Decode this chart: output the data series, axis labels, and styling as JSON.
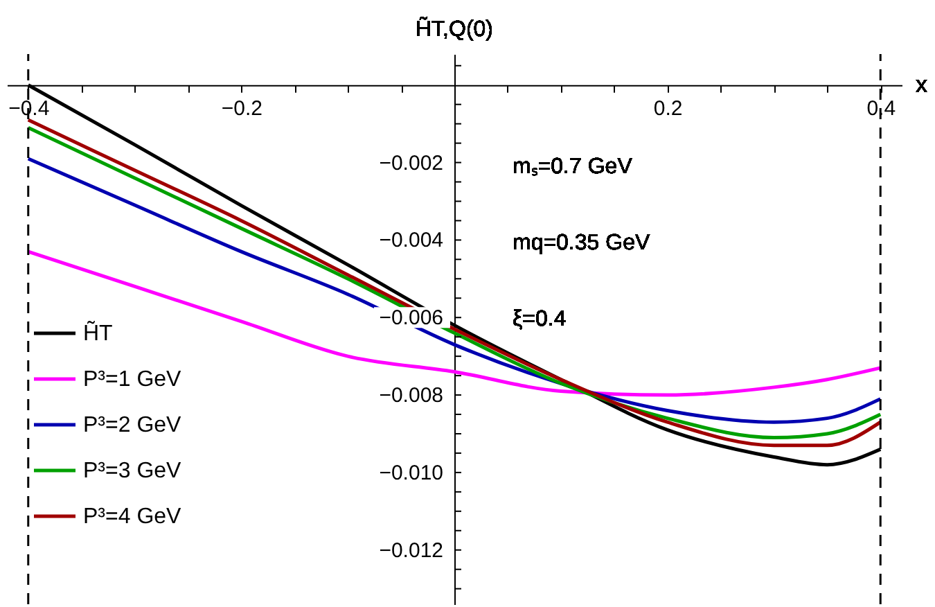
{
  "chart_data": {
    "type": "line",
    "xlabel": "x",
    "ylabel": "H̃T,Q(0)",
    "x": [
      -0.4,
      -0.3,
      -0.2,
      -0.1,
      0,
      0.1,
      0.2,
      0.3,
      0.35,
      0.4
    ],
    "series": [
      {
        "name": "H̃T",
        "color": "#000000",
        "values": [
          0.0,
          -0.00154,
          -0.00311,
          -0.00464,
          -0.0062,
          -0.0076,
          -0.0089,
          -0.0096,
          -0.0098,
          -0.0094
        ]
      },
      {
        "name": "P³=1 GeV",
        "color": "#ff00ff",
        "values": [
          -0.0043,
          -0.0052,
          -0.0061,
          -0.007,
          -0.0074,
          -0.0079,
          -0.008,
          -0.0078,
          -0.0076,
          -0.0073
        ]
      },
      {
        "name": "P³=2 GeV",
        "color": "#0000b0",
        "values": [
          -0.0019,
          -0.0031,
          -0.0043,
          -0.0054,
          -0.0067,
          -0.0077,
          -0.0084,
          -0.0087,
          -0.0086,
          -0.0081
        ]
      },
      {
        "name": "P³=3 GeV",
        "color": "#00a000",
        "values": [
          -0.0011,
          -0.0024,
          -0.0037,
          -0.005,
          -0.0064,
          -0.0077,
          -0.0086,
          -0.0091,
          -0.009,
          -0.0085
        ]
      },
      {
        "name": "P³=4 GeV",
        "color": "#a00000",
        "values": [
          -0.0009,
          -0.0022,
          -0.0035,
          -0.0049,
          -0.0063,
          -0.0076,
          -0.0087,
          -0.0093,
          -0.0093,
          -0.0087
        ]
      }
    ],
    "xlim": [
      -0.42,
      0.42
    ],
    "xticks": [
      -0.4,
      {
        "value": -0.35,
        "label": null
      },
      {
        "value": -0.3,
        "label": null
      },
      {
        "value": -0.25,
        "label": null
      },
      -0.2,
      {
        "value": -0.15,
        "label": null
      },
      {
        "value": -0.1,
        "label": null
      },
      {
        "value": -0.05,
        "label": null
      },
      {
        "value": 0.05,
        "label": null
      },
      {
        "value": 0.1,
        "label": null
      },
      {
        "value": 0.15,
        "label": null
      },
      0.2,
      {
        "value": 0.25,
        "label": null
      },
      {
        "value": 0.3,
        "label": null
      },
      {
        "value": 0.35,
        "label": null
      },
      0.4
    ],
    "ylim": [
      -0.0134,
      0.0008
    ],
    "yticks": [
      {
        "value": 0.0005,
        "label": null
      },
      {
        "value": -0.0005,
        "label": null
      },
      {
        "value": -0.001,
        "label": null
      },
      {
        "value": -0.0015,
        "label": null
      },
      -0.002,
      {
        "value": -0.0025,
        "label": null
      },
      {
        "value": -0.003,
        "label": null
      },
      {
        "value": -0.0035,
        "label": null
      },
      -0.004,
      {
        "value": -0.0045,
        "label": null
      },
      {
        "value": -0.005,
        "label": null
      },
      {
        "value": -0.0055,
        "label": null
      },
      -0.006,
      {
        "value": -0.0065,
        "label": null
      },
      {
        "value": -0.007,
        "label": null
      },
      {
        "value": -0.0075,
        "label": null
      },
      -0.008,
      {
        "value": -0.0085,
        "label": null
      },
      {
        "value": -0.009,
        "label": null
      },
      {
        "value": -0.0095,
        "label": null
      },
      {
        "value": -0.01,
        "label": "−0.010"
      },
      {
        "value": -0.0105,
        "label": null
      },
      {
        "value": -0.011,
        "label": null
      },
      {
        "value": -0.0115,
        "label": null
      },
      -0.012,
      {
        "value": -0.0125,
        "label": null
      },
      {
        "value": -0.013,
        "label": null
      }
    ],
    "ref_lines": [
      {
        "axis": "x",
        "value": -0.4,
        "color": "#000000",
        "line_style": "dashed"
      },
      {
        "axis": "x",
        "value": 0.4,
        "color": "#000000",
        "line_style": "dashed"
      }
    ],
    "annotations": [
      "mₛ=0.7 GeV",
      "mq=0.35 GeV",
      "ξ=0.4"
    ],
    "legend": "bottom left",
    "grid": false,
    "marker": "none",
    "line_style": "solid"
  }
}
